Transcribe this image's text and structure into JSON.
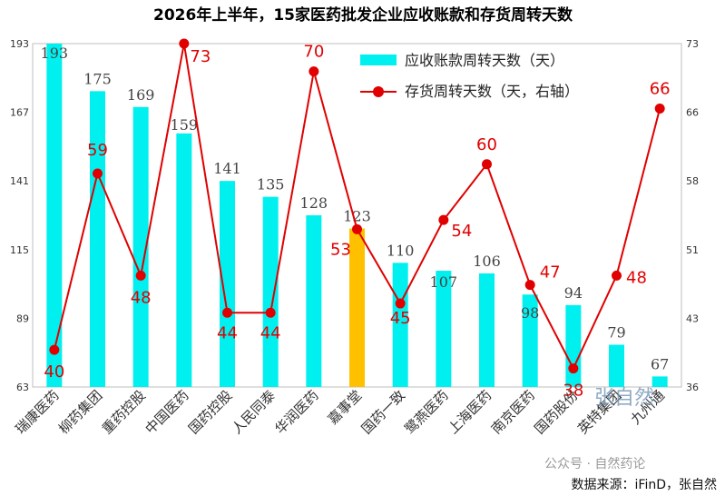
{
  "chart_data": {
    "type": "bar",
    "title": "2026年上半年，15家医药批发企业应收账款和存货周转天数",
    "categories": [
      "瑞康医药",
      "柳药集团",
      "重药控股",
      "中国医药",
      "国药控股",
      "人民同泰",
      "华润医药",
      "嘉事堂",
      "国药一致",
      "鹭燕医药",
      "上海医药",
      "南京医药",
      "国药股份",
      "英特集团",
      "九州通"
    ],
    "series": [
      {
        "name": "应收账款周转天数（天）",
        "type": "bar",
        "axis": "left",
        "values": [
          193,
          175,
          169,
          159,
          141,
          135,
          128,
          123,
          110,
          107,
          106,
          98,
          94,
          79,
          67
        ],
        "labels": [
          "193",
          "175",
          "169",
          "159",
          "141",
          "135",
          "128",
          "123",
          "110",
          "107",
          "106",
          "98",
          "94",
          "79",
          "67"
        ]
      },
      {
        "name": "存货周转天数（天，右轴）",
        "type": "line",
        "axis": "right",
        "values": [
          40,
          59,
          48,
          73,
          44,
          44,
          70,
          53,
          45,
          54,
          60,
          47,
          38,
          48,
          66
        ],
        "labels": [
          "40",
          "59",
          "48",
          "73",
          "44",
          "44",
          "70",
          "53",
          "45",
          "54",
          "60",
          "47",
          "38",
          "48",
          "66"
        ]
      }
    ],
    "left_axis": {
      "min": 63,
      "max": 193,
      "ticks": [
        "193",
        "167",
        "141",
        "115",
        "89",
        "63"
      ]
    },
    "right_axis": {
      "min": 36,
      "max": 73,
      "ticks": [
        "73",
        "66",
        "58",
        "51",
        "43",
        "36"
      ]
    },
    "highlight_category": "嘉事堂",
    "legend_position": "top-right",
    "grid": false
  },
  "colors": {
    "bar": "#00f0f0",
    "highlight_bar": "#ffc000",
    "line": "#e00000",
    "label_red": "#e00000"
  },
  "source_text": "数据来源：iFinD，张自然",
  "watermark": {
    "name": "张自然",
    "account": "公众号 · 自然药论"
  }
}
